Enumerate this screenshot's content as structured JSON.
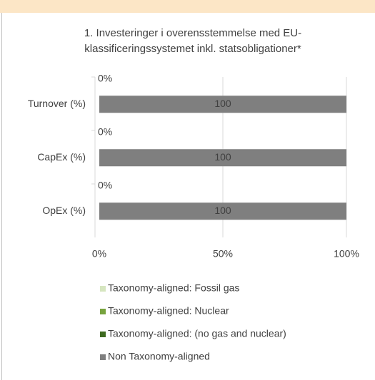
{
  "chart_data": {
    "type": "stacked-bar-horizontal",
    "title": "1. Investeringer i overensstemmelse med EU-klassificeringssystemet inkl. statsobligationer*",
    "categories": [
      "Turnover (%)",
      "CapEx (%)",
      "OpEx (%)"
    ],
    "series": [
      {
        "name": "Taxonomy-aligned: Fossil gas",
        "color": "#d6e6c0",
        "values": [
          0,
          0,
          0
        ]
      },
      {
        "name": "Taxonomy-aligned: Nuclear",
        "color": "#77a33e",
        "values": [
          0,
          0,
          0
        ]
      },
      {
        "name": "Taxonomy-aligned: (no gas and nuclear)",
        "color": "#3e6a20",
        "values": [
          0,
          0,
          0
        ],
        "value_labels": [
          "0%",
          "0%",
          "0%"
        ]
      },
      {
        "name": "Non Taxonomy-aligned",
        "color": "#7f7f7f",
        "values": [
          100,
          100,
          100
        ]
      }
    ],
    "xlim": [
      0,
      100
    ],
    "xticks": [
      {
        "value": 0,
        "label": "0%"
      },
      {
        "value": 50,
        "label": "50%"
      },
      {
        "value": 100,
        "label": "100%"
      }
    ],
    "grid": true,
    "legend": "bottom"
  }
}
